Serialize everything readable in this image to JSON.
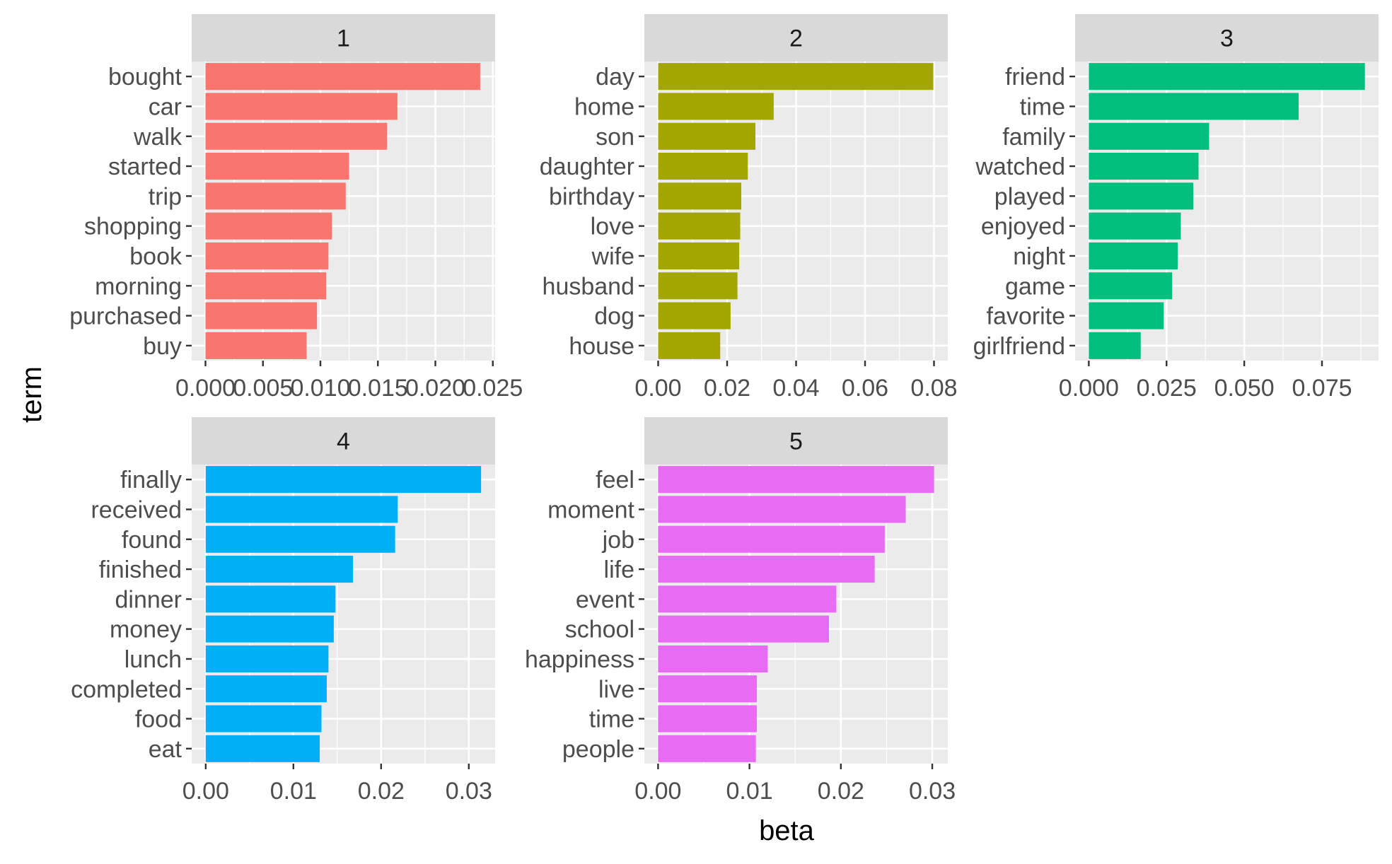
{
  "chart_data": {
    "type": "bar",
    "orientation": "horizontal",
    "facet_layout": "3 columns x 2 rows",
    "xlabel": "beta",
    "ylabel": "term",
    "grid": true,
    "legend": "none",
    "panels": [
      {
        "facet": "1",
        "color": "#F8766D",
        "categories": [
          "bought",
          "car",
          "walk",
          "started",
          "trip",
          "shopping",
          "book",
          "morning",
          "purchased",
          "buy"
        ],
        "values": [
          0.0239,
          0.0167,
          0.0158,
          0.0125,
          0.0122,
          0.011,
          0.0107,
          0.0105,
          0.0097,
          0.0088
        ],
        "xlim": [
          -0.0012,
          0.0252
        ],
        "xticks": [
          0.0,
          0.005,
          0.01,
          0.015,
          0.02,
          0.025
        ],
        "xtick_labels": [
          "0.000",
          "0.005",
          "0.010",
          "0.015",
          "0.020",
          "0.025"
        ]
      },
      {
        "facet": "2",
        "color": "#A3A500",
        "categories": [
          "day",
          "home",
          "son",
          "daughter",
          "birthday",
          "love",
          "wife",
          "husband",
          "dog",
          "house"
        ],
        "values": [
          0.0798,
          0.0335,
          0.0282,
          0.026,
          0.0241,
          0.0238,
          0.0235,
          0.023,
          0.021,
          0.018
        ],
        "xlim": [
          -0.004,
          0.084
        ],
        "xticks": [
          0.0,
          0.02,
          0.04,
          0.06,
          0.08
        ],
        "xtick_labels": [
          "0.00",
          "0.02",
          "0.04",
          "0.06",
          "0.08"
        ]
      },
      {
        "facet": "3",
        "color": "#00BF7D",
        "categories": [
          "friend",
          "time",
          "family",
          "watched",
          "played",
          "enjoyed",
          "night",
          "game",
          "favorite",
          "girlfriend"
        ],
        "values": [
          0.0888,
          0.0675,
          0.0387,
          0.0353,
          0.0336,
          0.0296,
          0.0286,
          0.0268,
          0.0241,
          0.0167
        ],
        "xlim": [
          -0.0044,
          0.0932
        ],
        "xticks": [
          0.0,
          0.025,
          0.05,
          0.075
        ],
        "xtick_labels": [
          "0.000",
          "0.025",
          "0.050",
          "0.075"
        ]
      },
      {
        "facet": "4",
        "color": "#00B0F6",
        "categories": [
          "finally",
          "received",
          "found",
          "finished",
          "dinner",
          "money",
          "lunch",
          "completed",
          "food",
          "eat"
        ],
        "values": [
          0.0314,
          0.0219,
          0.0216,
          0.0168,
          0.0148,
          0.0146,
          0.014,
          0.0138,
          0.0132,
          0.013
        ],
        "xlim": [
          -0.0016,
          0.033
        ],
        "xticks": [
          0.0,
          0.01,
          0.02,
          0.03
        ],
        "xtick_labels": [
          "0.00",
          "0.01",
          "0.02",
          "0.03"
        ]
      },
      {
        "facet": "5",
        "color": "#E76BF3",
        "categories": [
          "feel",
          "moment",
          "job",
          "life",
          "event",
          "school",
          "happiness",
          "live",
          "time",
          "people"
        ],
        "values": [
          0.0302,
          0.0271,
          0.0248,
          0.0237,
          0.0195,
          0.0187,
          0.012,
          0.0108,
          0.0108,
          0.0107
        ],
        "xlim": [
          -0.0015,
          0.0317
        ],
        "xticks": [
          0.0,
          0.01,
          0.02,
          0.03
        ],
        "xtick_labels": [
          "0.00",
          "0.01",
          "0.02",
          "0.03"
        ]
      }
    ]
  }
}
